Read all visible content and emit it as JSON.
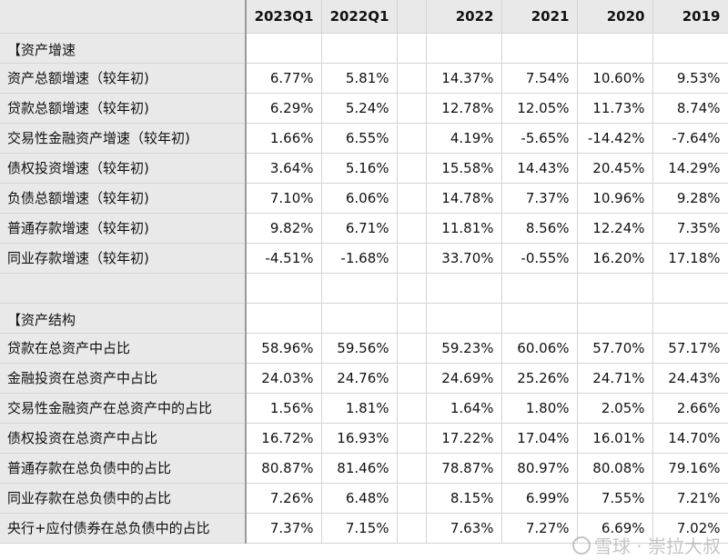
{
  "columns": [
    "2023Q1",
    "2022Q1",
    "",
    "2022",
    "2021",
    "2020",
    "2019"
  ],
  "rows": [
    {
      "label": "【资产增速",
      "values": [
        "",
        "",
        "",
        "",
        "",
        "",
        ""
      ]
    },
    {
      "label": "资产总额增速（较年初)",
      "values": [
        "6.77%",
        "5.81%",
        "",
        "14.37%",
        "7.54%",
        "10.60%",
        "9.53%"
      ]
    },
    {
      "label": "贷款总额增速（较年初)",
      "values": [
        "6.29%",
        "5.24%",
        "",
        "12.78%",
        "12.05%",
        "11.73%",
        "8.74%"
      ]
    },
    {
      "label": "交易性金融资产增速（较年初)",
      "values": [
        "1.66%",
        "6.55%",
        "",
        "4.19%",
        "-5.65%",
        "-14.42%",
        "-7.64%"
      ]
    },
    {
      "label": "债权投资增速（较年初)",
      "values": [
        "3.64%",
        "5.16%",
        "",
        "15.58%",
        "14.43%",
        "20.45%",
        "14.29%"
      ]
    },
    {
      "label": "负债总额增速（较年初)",
      "values": [
        "7.10%",
        "6.06%",
        "",
        "14.78%",
        "7.37%",
        "10.96%",
        "9.28%"
      ]
    },
    {
      "label": "普通存款增速（较年初)",
      "values": [
        "9.82%",
        "6.71%",
        "",
        "11.81%",
        "8.56%",
        "12.24%",
        "7.35%"
      ]
    },
    {
      "label": "同业存款增速（较年初)",
      "values": [
        "-4.51%",
        "-1.68%",
        "",
        "33.70%",
        "-0.55%",
        "16.20%",
        "17.18%"
      ]
    },
    {
      "label": "",
      "values": [
        "",
        "",
        "",
        "",
        "",
        "",
        ""
      ]
    },
    {
      "label": "【资产结构",
      "values": [
        "",
        "",
        "",
        "",
        "",
        "",
        ""
      ]
    },
    {
      "label": "贷款在总资产中占比",
      "values": [
        "58.96%",
        "59.56%",
        "",
        "59.23%",
        "60.06%",
        "57.70%",
        "57.17%"
      ]
    },
    {
      "label": "金融投资在总资产中占比",
      "values": [
        "24.03%",
        "24.76%",
        "",
        "24.69%",
        "25.26%",
        "24.71%",
        "24.43%"
      ]
    },
    {
      "label": "交易性金融资产在总资产中的占比",
      "values": [
        "1.56%",
        "1.81%",
        "",
        "1.64%",
        "1.80%",
        "2.05%",
        "2.66%"
      ]
    },
    {
      "label": "债权投资在总资产中占比",
      "values": [
        "16.72%",
        "16.93%",
        "",
        "17.22%",
        "17.04%",
        "16.01%",
        "14.70%"
      ]
    },
    {
      "label": "普通存款在总负债中的占比",
      "values": [
        "80.87%",
        "81.46%",
        "",
        "78.87%",
        "80.97%",
        "80.08%",
        "79.16%"
      ]
    },
    {
      "label": "同业存款在总负债中的占比",
      "values": [
        "7.26%",
        "6.48%",
        "",
        "8.15%",
        "6.99%",
        "7.55%",
        "7.21%"
      ]
    },
    {
      "label": "央行+应付债券在总负债中的占比",
      "values": [
        "7.37%",
        "7.15%",
        "",
        "7.63%",
        "7.27%",
        "6.69%",
        "7.02%"
      ]
    }
  ],
  "watermark": "雪球 · 崇拉大叔"
}
